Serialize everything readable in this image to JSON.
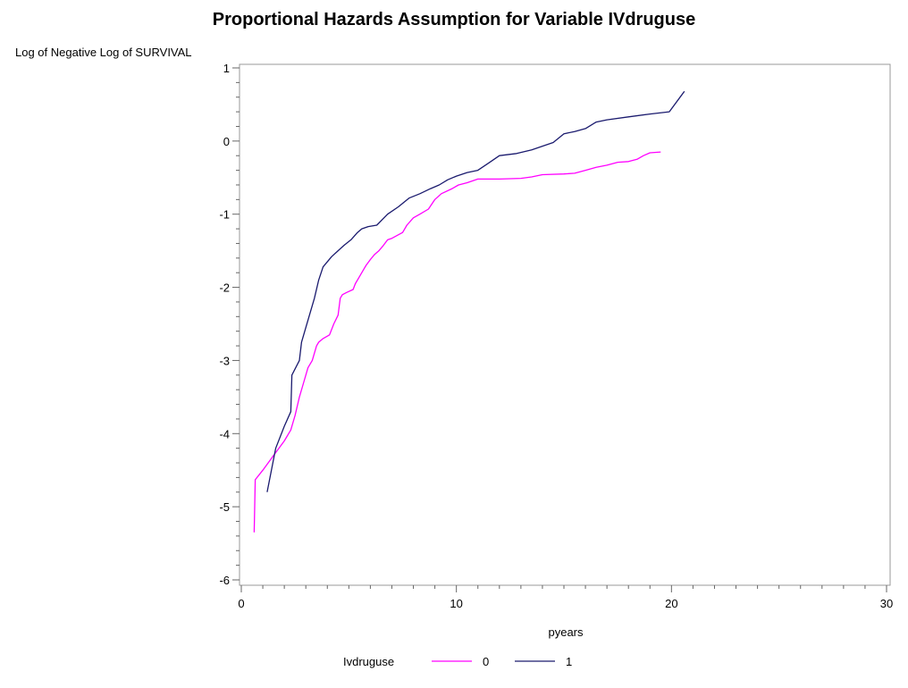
{
  "chart_data": {
    "type": "line",
    "title": "Proportional Hazards Assumption for Variable IVdruguse",
    "ylabel": "Log of Negative Log of SURVIVAL",
    "xlabel": "pyears",
    "xlim": [
      0,
      30
    ],
    "ylim": [
      -6,
      1
    ],
    "xticks": [
      0,
      10,
      20,
      30
    ],
    "yticks": [
      1,
      0,
      -1,
      -2,
      -3,
      -4,
      -5,
      -6
    ],
    "grid": false,
    "legend": {
      "title": "Ivdruguse",
      "placement": "bottom"
    },
    "series": [
      {
        "name": "0",
        "color": "#ff00ff",
        "x": [
          0.6,
          0.65,
          1.0,
          1.5,
          2.0,
          2.3,
          2.5,
          2.7,
          2.9,
          3.1,
          3.3,
          3.5,
          3.6,
          3.8,
          4.1,
          4.3,
          4.5,
          4.6,
          4.7,
          4.9,
          5.2,
          5.3,
          5.5,
          5.7,
          5.8,
          6.0,
          6.2,
          6.4,
          6.6,
          6.8,
          7.0,
          7.5,
          7.7,
          8.0,
          8.3,
          8.7,
          9.0,
          9.3,
          9.8,
          10.1,
          10.5,
          11.0,
          12.0,
          13.0,
          13.5,
          14.0,
          15.0,
          15.5,
          16.0,
          16.5,
          17.0,
          17.5,
          18.0,
          18.4,
          18.7,
          19.0,
          19.5
        ],
        "y": [
          -5.35,
          -4.63,
          -4.5,
          -4.3,
          -4.1,
          -3.95,
          -3.75,
          -3.5,
          -3.3,
          -3.1,
          -3.0,
          -2.8,
          -2.75,
          -2.7,
          -2.65,
          -2.5,
          -2.38,
          -2.15,
          -2.1,
          -2.07,
          -2.03,
          -1.95,
          -1.85,
          -1.75,
          -1.7,
          -1.62,
          -1.55,
          -1.5,
          -1.43,
          -1.35,
          -1.33,
          -1.25,
          -1.15,
          -1.05,
          -1.0,
          -0.93,
          -0.8,
          -0.72,
          -0.65,
          -0.6,
          -0.57,
          -0.52,
          -0.52,
          -0.51,
          -0.49,
          -0.46,
          -0.45,
          -0.44,
          -0.4,
          -0.36,
          -0.33,
          -0.29,
          -0.28,
          -0.25,
          -0.2,
          -0.16,
          -0.15
        ]
      },
      {
        "name": "1",
        "color": "#1a1a6e",
        "x": [
          1.2,
          1.6,
          2.0,
          2.3,
          2.35,
          2.7,
          2.8,
          3.0,
          3.2,
          3.4,
          3.6,
          3.8,
          4.0,
          4.2,
          4.5,
          4.8,
          5.1,
          5.4,
          5.6,
          5.9,
          6.3,
          6.8,
          7.3,
          7.8,
          8.3,
          8.8,
          9.2,
          9.6,
          10.0,
          10.5,
          11.0,
          11.5,
          12.0,
          12.8,
          13.5,
          14.0,
          14.5,
          15.0,
          15.5,
          16.0,
          16.5,
          17.0,
          18.0,
          19.0,
          19.9,
          20.6
        ],
        "y": [
          -4.8,
          -4.2,
          -3.9,
          -3.7,
          -3.2,
          -3.0,
          -2.75,
          -2.55,
          -2.35,
          -2.15,
          -1.9,
          -1.72,
          -1.65,
          -1.58,
          -1.5,
          -1.42,
          -1.35,
          -1.25,
          -1.2,
          -1.17,
          -1.15,
          -1.0,
          -0.9,
          -0.78,
          -0.72,
          -0.65,
          -0.6,
          -0.53,
          -0.48,
          -0.43,
          -0.4,
          -0.3,
          -0.2,
          -0.17,
          -0.12,
          -0.07,
          -0.02,
          0.1,
          0.13,
          0.17,
          0.26,
          0.29,
          0.33,
          0.37,
          0.4,
          0.68
        ]
      }
    ]
  }
}
